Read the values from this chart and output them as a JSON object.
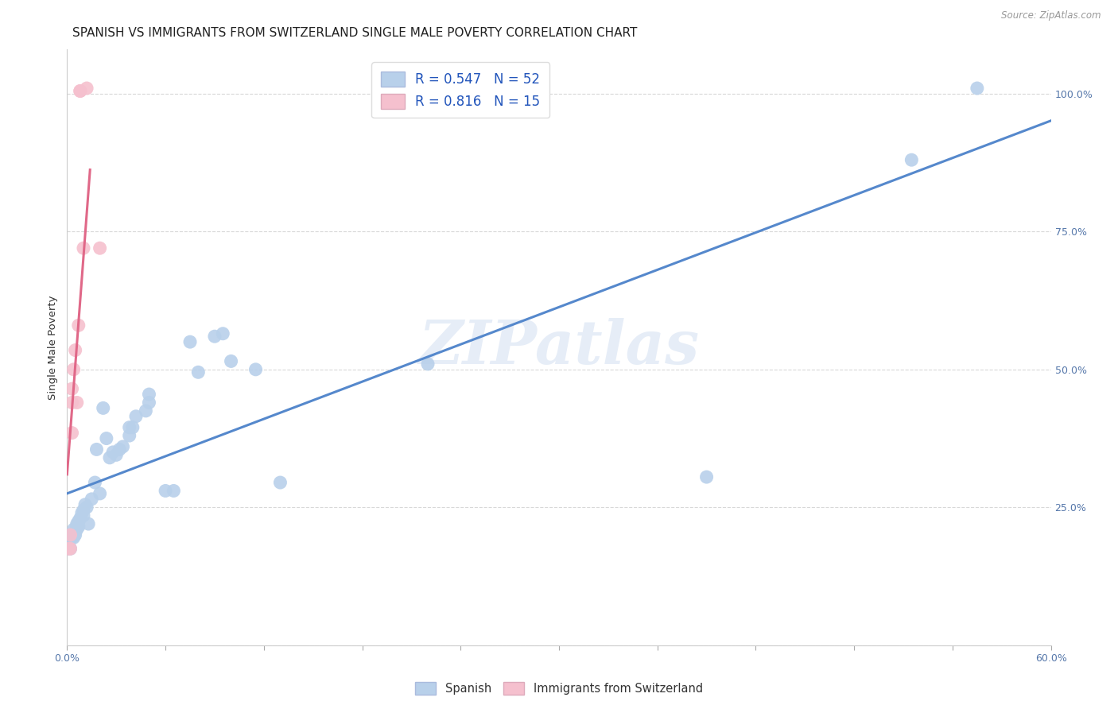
{
  "title": "SPANISH VS IMMIGRANTS FROM SWITZERLAND SINGLE MALE POVERTY CORRELATION CHART",
  "source": "Source: ZipAtlas.com",
  "ylabel": "Single Male Poverty",
  "xlim": [
    0.0,
    0.6
  ],
  "ylim": [
    0.0,
    1.08
  ],
  "watermark": "ZIPatlas",
  "blue_color": "#b8d0ea",
  "pink_color": "#f5c0ce",
  "blue_line_color": "#5588cc",
  "pink_line_color": "#e06888",
  "blue_scatter": [
    [
      0.001,
      0.175
    ],
    [
      0.002,
      0.175
    ],
    [
      0.002,
      0.195
    ],
    [
      0.003,
      0.195
    ],
    [
      0.003,
      0.2
    ],
    [
      0.004,
      0.195
    ],
    [
      0.004,
      0.21
    ],
    [
      0.005,
      0.205
    ],
    [
      0.005,
      0.2
    ],
    [
      0.006,
      0.21
    ],
    [
      0.006,
      0.215
    ],
    [
      0.006,
      0.22
    ],
    [
      0.007,
      0.215
    ],
    [
      0.007,
      0.225
    ],
    [
      0.008,
      0.23
    ],
    [
      0.009,
      0.24
    ],
    [
      0.01,
      0.245
    ],
    [
      0.01,
      0.235
    ],
    [
      0.011,
      0.255
    ],
    [
      0.012,
      0.25
    ],
    [
      0.013,
      0.22
    ],
    [
      0.015,
      0.265
    ],
    [
      0.017,
      0.295
    ],
    [
      0.018,
      0.355
    ],
    [
      0.02,
      0.275
    ],
    [
      0.022,
      0.43
    ],
    [
      0.024,
      0.375
    ],
    [
      0.026,
      0.34
    ],
    [
      0.028,
      0.35
    ],
    [
      0.03,
      0.345
    ],
    [
      0.032,
      0.355
    ],
    [
      0.034,
      0.36
    ],
    [
      0.038,
      0.38
    ],
    [
      0.038,
      0.395
    ],
    [
      0.04,
      0.395
    ],
    [
      0.042,
      0.415
    ],
    [
      0.048,
      0.425
    ],
    [
      0.05,
      0.455
    ],
    [
      0.05,
      0.44
    ],
    [
      0.06,
      0.28
    ],
    [
      0.065,
      0.28
    ],
    [
      0.075,
      0.55
    ],
    [
      0.08,
      0.495
    ],
    [
      0.09,
      0.56
    ],
    [
      0.095,
      0.565
    ],
    [
      0.1,
      0.515
    ],
    [
      0.115,
      0.5
    ],
    [
      0.13,
      0.295
    ],
    [
      0.22,
      0.51
    ],
    [
      0.39,
      0.305
    ],
    [
      0.515,
      0.88
    ],
    [
      0.555,
      1.01
    ]
  ],
  "pink_scatter": [
    [
      0.001,
      0.175
    ],
    [
      0.002,
      0.175
    ],
    [
      0.002,
      0.2
    ],
    [
      0.003,
      0.385
    ],
    [
      0.003,
      0.44
    ],
    [
      0.003,
      0.465
    ],
    [
      0.004,
      0.5
    ],
    [
      0.005,
      0.535
    ],
    [
      0.006,
      0.44
    ],
    [
      0.007,
      0.58
    ],
    [
      0.008,
      1.005
    ],
    [
      0.008,
      1.005
    ],
    [
      0.01,
      0.72
    ],
    [
      0.012,
      1.01
    ],
    [
      0.02,
      0.72
    ]
  ],
  "blue_R": 0.547,
  "blue_N": 52,
  "pink_R": 0.816,
  "pink_N": 15,
  "ytick_vals": [
    0.0,
    0.25,
    0.5,
    0.75,
    1.0
  ],
  "ytick_labels": [
    "",
    "25.0%",
    "50.0%",
    "75.0%",
    "100.0%"
  ],
  "xtick_positions": [
    0.0,
    0.06,
    0.12,
    0.18,
    0.24,
    0.3,
    0.36,
    0.42,
    0.48,
    0.54,
    0.6
  ],
  "title_fontsize": 11,
  "tick_fontsize": 9,
  "axis_label_fontsize": 9.5
}
